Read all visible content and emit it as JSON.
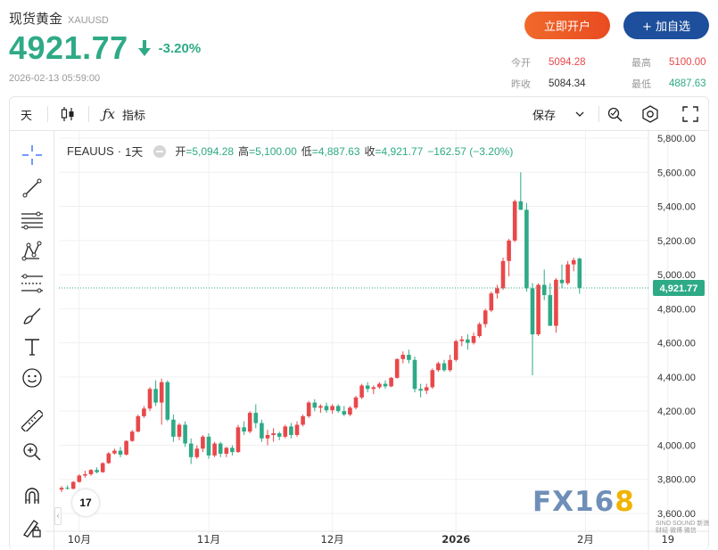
{
  "header": {
    "name": "现货黄金",
    "symbol": "XAUUSD",
    "price": "4921.77",
    "change_pct": "-3.20%",
    "datetime": "2026-02-13 05:59:00",
    "open_account_label": "立即开户",
    "add_watch_label": "+ 加自选"
  },
  "stats": {
    "open_label": "今开",
    "open": "5094.28",
    "high_label": "最高",
    "high": "5100.00",
    "prev_label": "昨收",
    "prev": "5084.34",
    "low_label": "最低",
    "low": "4887.63"
  },
  "toolbar": {
    "interval": "天",
    "indicators": "指标",
    "save": "保存"
  },
  "legend": {
    "symbol": "FEAUUS",
    "interval": "1天",
    "open_k": "开",
    "open_v": "=5,094.28",
    "high_k": "高",
    "high_v": "=5,100.00",
    "low_k": "低",
    "low_v": "=4,887.63",
    "close_k": "收",
    "close_v": "=4,921.77",
    "change": "−162.57 (−3.20%)"
  },
  "colors": {
    "up": "#e8484a",
    "down": "#2eaa86",
    "accent": "#1e4f9c",
    "open_btn": "#e94b21"
  },
  "icons": [
    "crosshair-icon",
    "trend-line-icon",
    "fib-icon",
    "pattern-icon",
    "parallel-channel-icon",
    "brush-icon",
    "text-icon",
    "emoji-icon",
    "ruler-icon",
    "zoom-in-icon",
    "magnet-icon",
    "lock-draw-icon",
    "candles-icon",
    "fx-icon",
    "chevron-down-icon",
    "camera-settings-icon",
    "settings-icon",
    "fullscreen-icon",
    "arrow-down-icon"
  ],
  "watermark": {
    "text1": "FX16",
    "text2": "8",
    "sub": "SINO SOUND 新浪财经 微博 微信"
  },
  "tv_logo": "17",
  "chart_data": {
    "type": "candlestick",
    "title": "FEAUUS · 1天",
    "ylim": [
      3580,
      5830
    ],
    "y_ticks": [
      "5,800.00",
      "5,600.00",
      "5,400.00",
      "5,200.00",
      "5,000.00",
      "4,800.00",
      "4,600.00",
      "4,400.00",
      "4,200.00",
      "4,000.00",
      "3,800.00",
      "3,600.00"
    ],
    "y_tick_values": [
      5800,
      5600,
      5400,
      5200,
      5000,
      4800,
      4600,
      4400,
      4200,
      4000,
      3800,
      3600
    ],
    "x_ticks": [
      "10月",
      "11月",
      "12月",
      "2026",
      "2月",
      "19"
    ],
    "x_tick_index": [
      3,
      25,
      46,
      67,
      89,
      103
    ],
    "last_price_label": "4,921.77",
    "last_price": 4921.77,
    "candles": [
      [
        3740,
        3760,
        3725,
        3750
      ],
      [
        3750,
        3765,
        3740,
        3745
      ],
      [
        3745,
        3790,
        3740,
        3785
      ],
      [
        3785,
        3830,
        3780,
        3822
      ],
      [
        3822,
        3850,
        3810,
        3830
      ],
      [
        3830,
        3860,
        3820,
        3855
      ],
      [
        3855,
        3870,
        3835,
        3842
      ],
      [
        3842,
        3900,
        3838,
        3895
      ],
      [
        3895,
        3960,
        3890,
        3952
      ],
      [
        3952,
        3980,
        3945,
        3968
      ],
      [
        3968,
        3990,
        3930,
        3945
      ],
      [
        3945,
        4030,
        3940,
        4025
      ],
      [
        4025,
        4090,
        4020,
        4080
      ],
      [
        4080,
        4180,
        4075,
        4170
      ],
      [
        4170,
        4230,
        4160,
        4215
      ],
      [
        4215,
        4340,
        4200,
        4330
      ],
      [
        4330,
        4380,
        4230,
        4250
      ],
      [
        4250,
        4390,
        4120,
        4370
      ],
      [
        4370,
        4380,
        4140,
        4150
      ],
      [
        4150,
        4180,
        4020,
        4050
      ],
      [
        4050,
        4130,
        4030,
        4120
      ],
      [
        4120,
        4140,
        3990,
        4010
      ],
      [
        4010,
        4040,
        3890,
        3930
      ],
      [
        3930,
        4000,
        3920,
        3980
      ],
      [
        3980,
        4060,
        3960,
        4050
      ],
      [
        4050,
        4070,
        3920,
        3940
      ],
      [
        3940,
        4020,
        3930,
        4010
      ],
      [
        4010,
        4020,
        3930,
        3950
      ],
      [
        3950,
        3990,
        3930,
        3985
      ],
      [
        3985,
        4000,
        3940,
        3960
      ],
      [
        3960,
        4120,
        3955,
        4105
      ],
      [
        4105,
        4140,
        4060,
        4080
      ],
      [
        4080,
        4200,
        4070,
        4190
      ],
      [
        4190,
        4240,
        4100,
        4130
      ],
      [
        4130,
        4150,
        4020,
        4040
      ],
      [
        4040,
        4090,
        4000,
        4060
      ],
      [
        4060,
        4100,
        4020,
        4070
      ],
      [
        4070,
        4080,
        4030,
        4050
      ],
      [
        4050,
        4120,
        4040,
        4110
      ],
      [
        4110,
        4130,
        4040,
        4060
      ],
      [
        4060,
        4140,
        4050,
        4120
      ],
      [
        4120,
        4180,
        4110,
        4170
      ],
      [
        4170,
        4260,
        4160,
        4250
      ],
      [
        4250,
        4270,
        4200,
        4220
      ],
      [
        4220,
        4240,
        4190,
        4230
      ],
      [
        4230,
        4250,
        4190,
        4205
      ],
      [
        4205,
        4240,
        4185,
        4230
      ],
      [
        4230,
        4240,
        4190,
        4200
      ],
      [
        4200,
        4230,
        4170,
        4180
      ],
      [
        4180,
        4230,
        4170,
        4220
      ],
      [
        4220,
        4290,
        4210,
        4280
      ],
      [
        4280,
        4360,
        4270,
        4350
      ],
      [
        4350,
        4370,
        4310,
        4330
      ],
      [
        4330,
        4350,
        4300,
        4340
      ],
      [
        4340,
        4370,
        4330,
        4360
      ],
      [
        4360,
        4380,
        4330,
        4345
      ],
      [
        4345,
        4400,
        4340,
        4395
      ],
      [
        4395,
        4510,
        4390,
        4505
      ],
      [
        4505,
        4550,
        4480,
        4530
      ],
      [
        4530,
        4560,
        4480,
        4500
      ],
      [
        4500,
        4520,
        4310,
        4330
      ],
      [
        4330,
        4360,
        4280,
        4320
      ],
      [
        4320,
        4360,
        4300,
        4340
      ],
      [
        4340,
        4450,
        4330,
        4440
      ],
      [
        4440,
        4490,
        4430,
        4480
      ],
      [
        4480,
        4500,
        4430,
        4440
      ],
      [
        4440,
        4530,
        4430,
        4500
      ],
      [
        4500,
        4620,
        4490,
        4610
      ],
      [
        4610,
        4640,
        4580,
        4620
      ],
      [
        4620,
        4650,
        4560,
        4600
      ],
      [
        4600,
        4660,
        4590,
        4640
      ],
      [
        4640,
        4720,
        4630,
        4710
      ],
      [
        4710,
        4800,
        4690,
        4790
      ],
      [
        4790,
        4900,
        4780,
        4890
      ],
      [
        4890,
        4940,
        4860,
        4920
      ],
      [
        4920,
        5100,
        4910,
        5080
      ],
      [
        5080,
        5210,
        4990,
        5200
      ],
      [
        5200,
        5440,
        5190,
        5430
      ],
      [
        5430,
        5600,
        5380,
        5380
      ],
      [
        5380,
        5420,
        4900,
        4920
      ],
      [
        4920,
        4950,
        4410,
        4650
      ],
      [
        4650,
        4950,
        4640,
        4940
      ],
      [
        4940,
        5030,
        4850,
        4880
      ],
      [
        4880,
        4950,
        4720,
        4700
      ],
      [
        4700,
        4980,
        4660,
        4970
      ],
      [
        4970,
        5060,
        4920,
        4950
      ],
      [
        4950,
        5080,
        4940,
        5060
      ],
      [
        5060,
        5100,
        5020,
        5085
      ],
      [
        5094,
        5100,
        4888,
        4922
      ]
    ]
  }
}
